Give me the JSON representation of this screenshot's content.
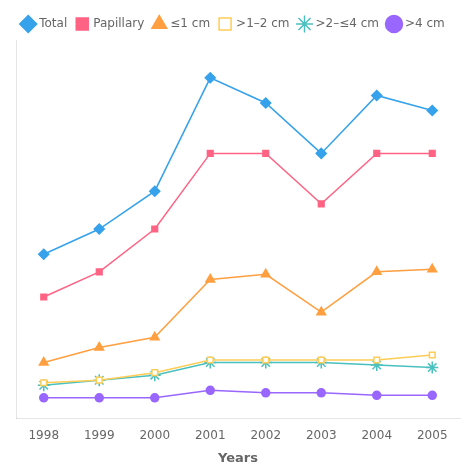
{
  "chart_data": {
    "type": "line",
    "x": [
      1998,
      1999,
      2000,
      2001,
      2002,
      2003,
      2004,
      2005
    ],
    "xlabel": "Years",
    "xlim": [
      1997.5,
      2005.5
    ],
    "xticks": [
      1998,
      1999,
      2000,
      2001,
      2002,
      2003,
      2004,
      2005
    ],
    "ylim": [
      0,
      15
    ],
    "tick_labels": "x",
    "grid": false,
    "legend": "top",
    "series": [
      {
        "name": "Total",
        "marker": "diamond",
        "values": [
          6.5,
          7.5,
          9.0,
          13.5,
          12.5,
          10.5,
          12.8,
          12.2
        ]
      },
      {
        "name": "Papillary",
        "marker": "square",
        "values": [
          4.8,
          5.8,
          7.5,
          10.5,
          10.5,
          8.5,
          10.5,
          10.5
        ]
      },
      {
        "name": "≤1 cm",
        "marker": "triangle",
        "values": [
          2.2,
          2.8,
          3.2,
          5.5,
          5.7,
          4.2,
          5.8,
          5.9
        ]
      },
      {
        "name": ">1–2 cm",
        "marker": "open_square",
        "values": [
          1.4,
          1.5,
          1.8,
          2.3,
          2.3,
          2.3,
          2.3,
          2.5
        ]
      },
      {
        "name": ">2–≤4 cm",
        "marker": "star",
        "values": [
          1.3,
          1.5,
          1.7,
          2.2,
          2.2,
          2.2,
          2.1,
          2.0
        ]
      },
      {
        "name": ">4 cm",
        "marker": "circle",
        "values": [
          0.8,
          0.8,
          0.8,
          1.1,
          1.0,
          1.0,
          0.9,
          0.9
        ]
      }
    ]
  }
}
